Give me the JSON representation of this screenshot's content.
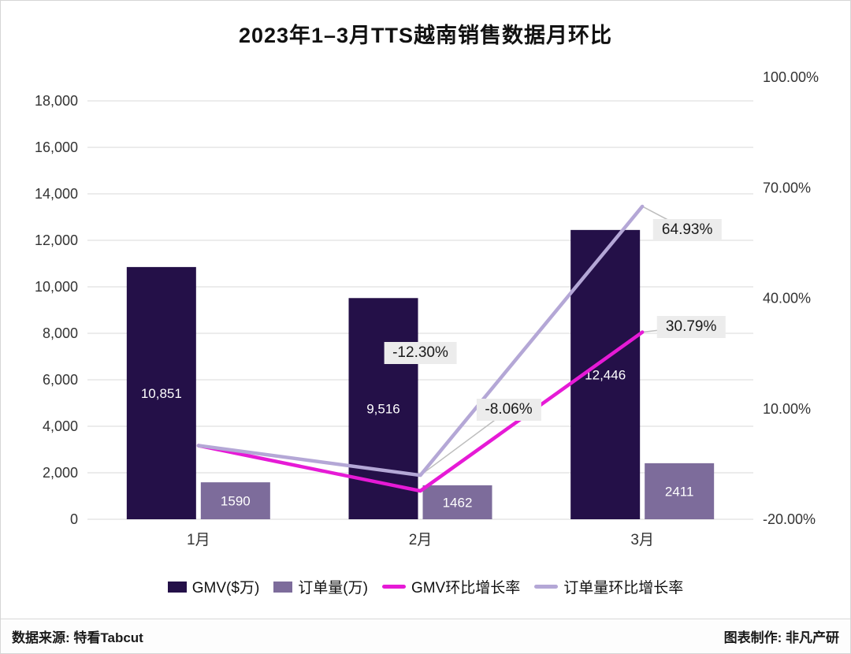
{
  "title": "2023年1–3月TTS越南销售数据月环比",
  "footer": {
    "source": "数据来源: 特看Tabcut",
    "credit": "图表制作: 非凡产研"
  },
  "colors": {
    "gmv_bar": "#241048",
    "order_bar": "#7d6c9b",
    "gmv_line": "#e61ad6",
    "order_line": "#b4a7d6",
    "grid": "#d9d9d9",
    "axis_text": "#333333",
    "bar_label_text": "#ffffff",
    "callout_bg": "#ececec",
    "callout_text": "#1a1a1a",
    "leader": "#bdbdbd"
  },
  "chart_data": {
    "type": "bar",
    "subtype": "combo bar + line, dual axis",
    "title": "2023年1–3月TTS越南销售数据月环比",
    "categories": [
      "1月",
      "2月",
      "3月"
    ],
    "series": [
      {
        "name": "GMV($万)",
        "type": "bar",
        "axis": "left",
        "values": [
          10851,
          9516,
          12446
        ],
        "labels": [
          "10,851",
          "9,516",
          "12,446"
        ]
      },
      {
        "name": "订单量(万)",
        "type": "bar",
        "axis": "left",
        "values": [
          1590,
          1462,
          2411
        ],
        "labels": [
          "1590",
          "1462",
          "2411"
        ]
      },
      {
        "name": "GMV环比增长率",
        "type": "line",
        "axis": "right",
        "values": [
          0,
          -12.3,
          30.79
        ],
        "labels": [
          "",
          "-12.30%",
          "30.79%"
        ]
      },
      {
        "name": "订单量环比增长率",
        "type": "line",
        "axis": "right",
        "values": [
          0,
          -8.06,
          64.93
        ],
        "labels": [
          "",
          "-8.06%",
          "64.93%"
        ]
      }
    ],
    "left_axis": {
      "min": 0,
      "max": 18000,
      "step": 2000,
      "tick_labels": [
        "0",
        "2,000",
        "4,000",
        "6,000",
        "8,000",
        "10,000",
        "12,000",
        "14,000",
        "16,000",
        "18,000"
      ]
    },
    "right_axis": {
      "min": -20,
      "max": 100,
      "tick_labels": [
        "-20.00%",
        "10.00%",
        "40.00%",
        "70.00%",
        "100.00%"
      ]
    },
    "grid": true,
    "legend_position": "bottom"
  }
}
